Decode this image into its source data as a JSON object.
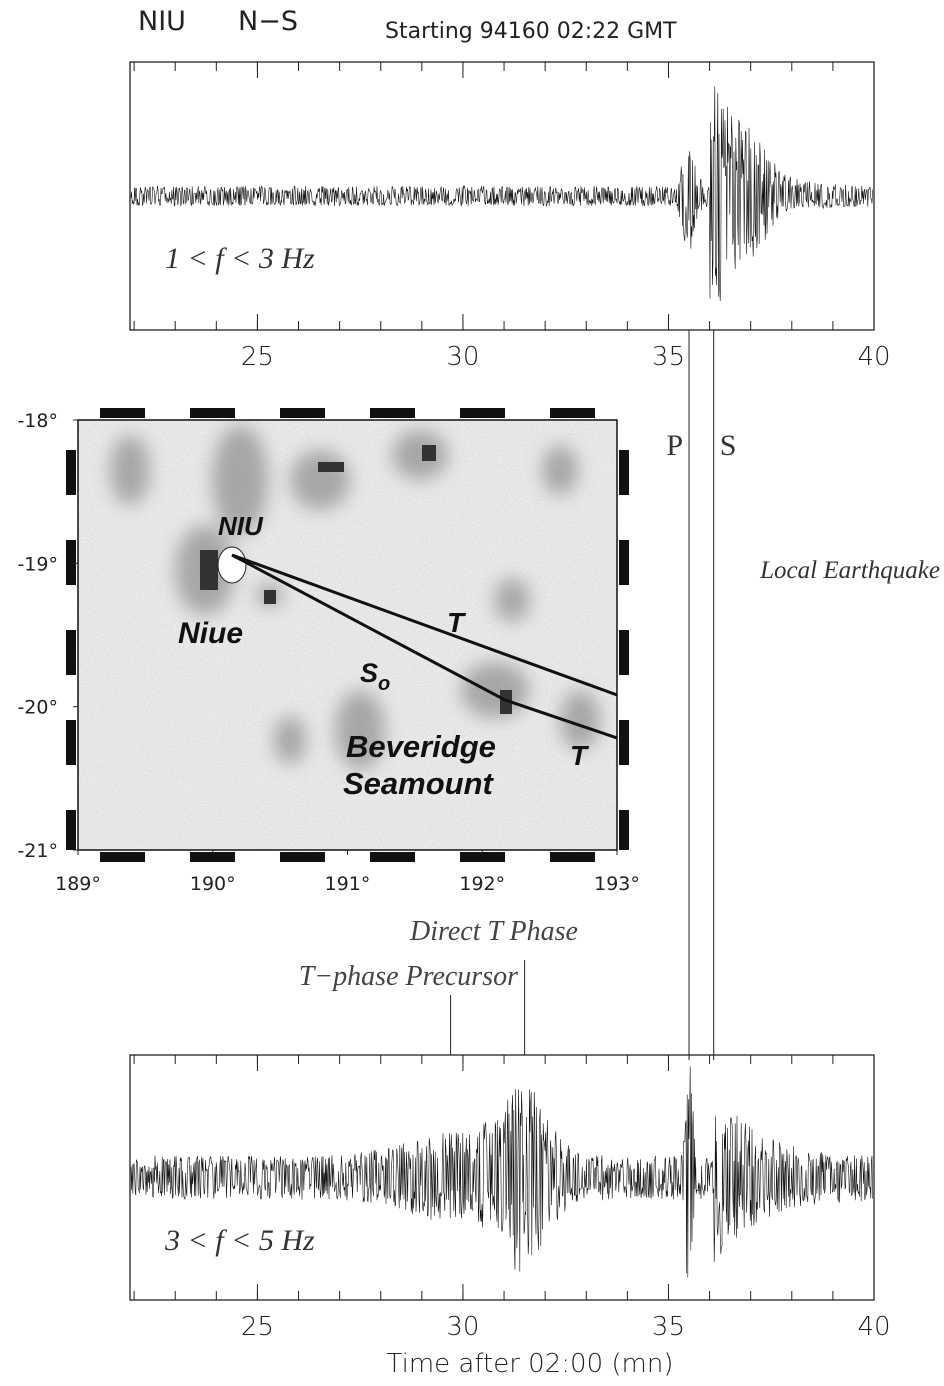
{
  "header": {
    "station": "NIU",
    "component": "N−S",
    "start": "Starting 94160 02:22 GMT"
  },
  "time_axis": {
    "xlim": [
      21.9,
      40
    ],
    "xticks": [
      25,
      30,
      35,
      40
    ],
    "label": "Time after 02:00 (mn)"
  },
  "top_trace": {
    "band": "1 < f < 3 Hz"
  },
  "bottom_trace": {
    "band": "3 < f < 5 Hz"
  },
  "phases": [
    {
      "label": "P",
      "time": 35.5
    },
    {
      "label": "S",
      "time": 36.1
    }
  ],
  "local_label": "Local Earthquake",
  "t_markers": [
    {
      "label": "Direct T Phase",
      "time": 31.5
    },
    {
      "label": "T−phase Precursor",
      "time": 29.7
    }
  ],
  "map": {
    "xlim": [
      189,
      193
    ],
    "ylim": [
      -18,
      -21
    ],
    "xticks": [
      {
        "value": 189,
        "label": "189°"
      },
      {
        "value": 190,
        "label": "190°"
      },
      {
        "value": 191,
        "label": "191°"
      },
      {
        "value": 192,
        "label": "192°"
      },
      {
        "value": 193,
        "label": "193°"
      }
    ],
    "yticks": [
      {
        "value": -18,
        "label": "-18°"
      },
      {
        "value": -19,
        "label": "-19°"
      },
      {
        "value": -20,
        "label": "-20°"
      },
      {
        "value": -21,
        "label": "-21°"
      }
    ],
    "labels": {
      "station": "NIU",
      "island": "Niue",
      "so": "S",
      "so_sub": "o",
      "t_direct": "T",
      "t_reflected": "T",
      "seamount_1": "Beveridge",
      "seamount_2": "Seamount"
    }
  }
}
